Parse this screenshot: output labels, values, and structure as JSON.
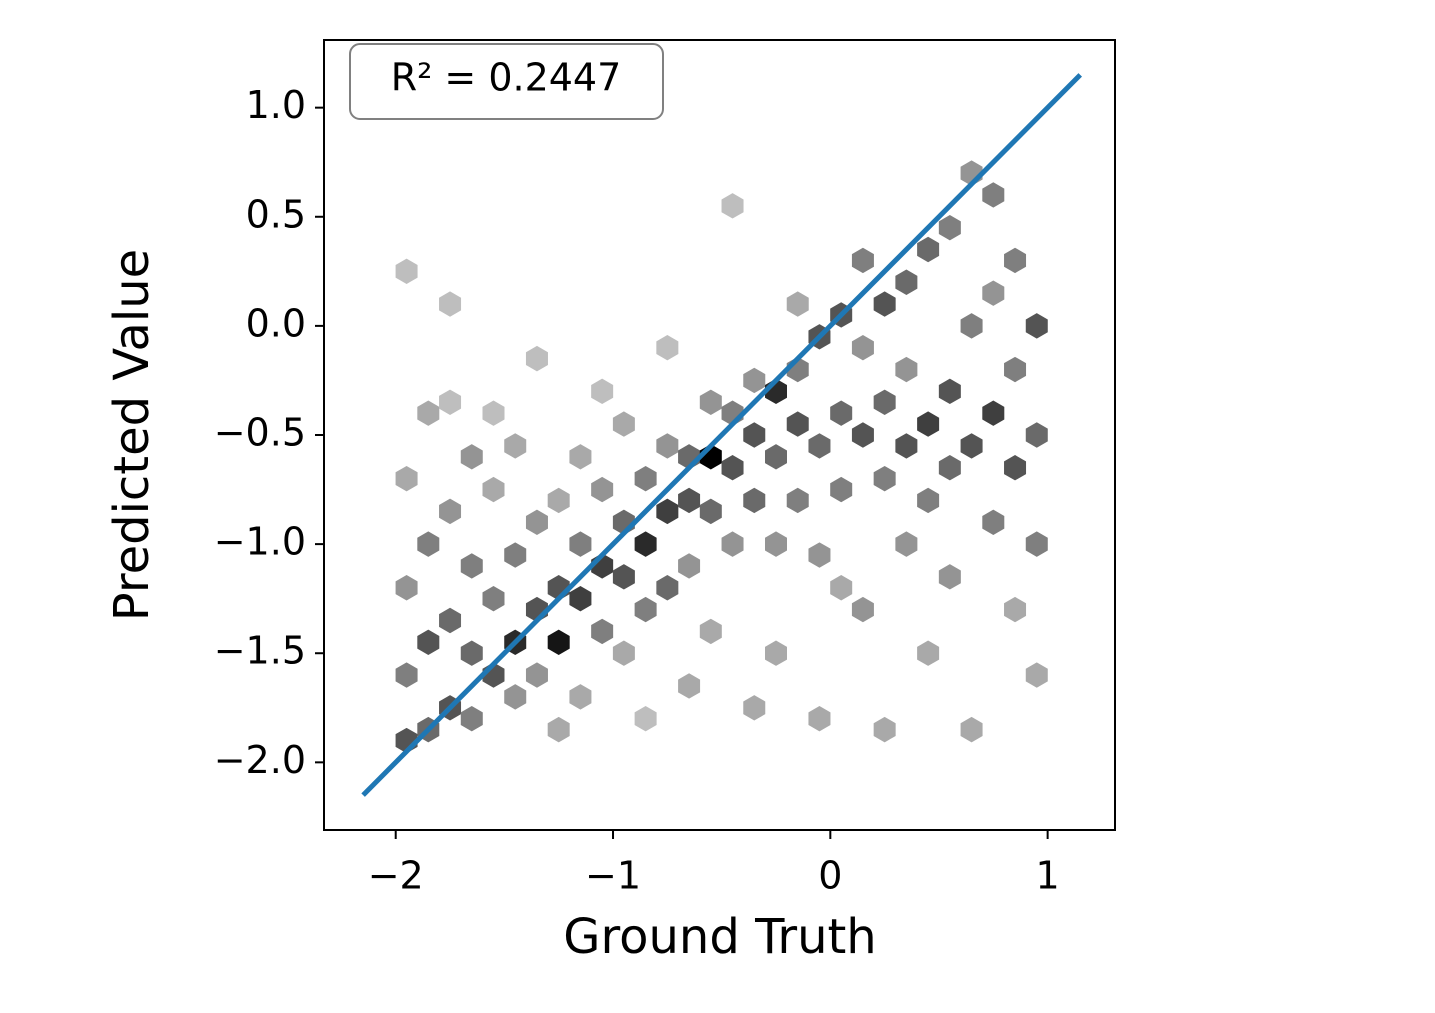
{
  "chart_data": {
    "type": "hexbin",
    "x_label": "Ground Truth",
    "y_label": "Predicted Value",
    "annotation": "R² = 0.2447",
    "xlim": [
      -2.33,
      1.31
    ],
    "ylim": [
      -2.31,
      1.31
    ],
    "xticks": [
      {
        "value": -2,
        "label": "−2"
      },
      {
        "value": -1,
        "label": "−1"
      },
      0,
      1
    ],
    "yticks": [
      {
        "value": -2.0,
        "label": "−2.0"
      },
      {
        "value": -1.5,
        "label": "−1.5"
      },
      {
        "value": -1.0,
        "label": "−1.0"
      },
      {
        "value": -0.5,
        "label": "−0.5"
      },
      {
        "value": 0.0,
        "label": "0.0"
      },
      {
        "value": 0.5,
        "label": "0.5"
      },
      {
        "value": 1.0,
        "label": "1.0"
      }
    ],
    "x": [
      -1.95,
      -1.95,
      -1.95,
      -1.95,
      -1.95,
      -1.85,
      -1.85,
      -1.85,
      -1.85,
      -1.75,
      -1.75,
      -1.75,
      -1.75,
      -1.75,
      -1.65,
      -1.65,
      -1.65,
      -1.65,
      -1.55,
      -1.55,
      -1.55,
      -1.55,
      -1.45,
      -1.45,
      -1.45,
      -1.45,
      -1.35,
      -1.35,
      -1.35,
      -1.35,
      -1.25,
      -1.25,
      -1.25,
      -1.25,
      -1.15,
      -1.15,
      -1.15,
      -1.15,
      -1.05,
      -1.05,
      -1.05,
      -1.05,
      -0.95,
      -0.95,
      -0.95,
      -0.95,
      -0.85,
      -0.85,
      -0.85,
      -0.85,
      -0.75,
      -0.75,
      -0.75,
      -0.75,
      -0.65,
      -0.65,
      -0.65,
      -0.65,
      -0.55,
      -0.55,
      -0.55,
      -0.55,
      -0.45,
      -0.45,
      -0.45,
      -0.45,
      -0.35,
      -0.35,
      -0.35,
      -0.35,
      -0.25,
      -0.25,
      -0.25,
      -0.25,
      -0.15,
      -0.15,
      -0.15,
      -0.15,
      -0.05,
      -0.05,
      -0.05,
      -0.05,
      0.05,
      0.05,
      0.05,
      0.05,
      0.15,
      0.15,
      0.15,
      0.15,
      0.25,
      0.25,
      0.25,
      0.25,
      0.35,
      0.35,
      0.35,
      0.35,
      0.45,
      0.45,
      0.45,
      0.45,
      0.55,
      0.55,
      0.55,
      0.55,
      0.65,
      0.65,
      0.65,
      0.65,
      0.75,
      0.75,
      0.75,
      0.75,
      0.85,
      0.85,
      0.85,
      0.85,
      0.95,
      0.95,
      0.95,
      0.95
    ],
    "y": [
      -1.9,
      -1.6,
      -1.2,
      -0.7,
      0.25,
      -1.85,
      -1.45,
      -1.0,
      -0.4,
      -1.75,
      -1.35,
      -0.85,
      -0.35,
      0.1,
      -1.8,
      -1.5,
      -1.1,
      -0.6,
      -1.6,
      -1.25,
      -0.75,
      -0.4,
      -1.45,
      -1.7,
      -1.05,
      -0.55,
      -1.3,
      -1.6,
      -0.9,
      -0.15,
      -1.45,
      -1.2,
      -0.8,
      -1.85,
      -1.25,
      -1.0,
      -0.6,
      -1.7,
      -1.1,
      -1.4,
      -0.75,
      -0.3,
      -1.15,
      -0.9,
      -1.5,
      -0.45,
      -1.0,
      -0.7,
      -1.3,
      -1.8,
      -0.85,
      -1.2,
      -0.55,
      -0.1,
      -0.8,
      -0.6,
      -1.1,
      -1.65,
      -0.6,
      -0.85,
      -0.35,
      -1.4,
      -0.65,
      -0.4,
      -1.0,
      0.55,
      -0.5,
      -0.8,
      -0.25,
      -1.75,
      -0.3,
      -0.6,
      -1.0,
      -1.5,
      -0.45,
      -0.2,
      -0.8,
      0.1,
      -0.05,
      -0.55,
      -1.05,
      -1.8,
      0.05,
      -0.4,
      -0.75,
      -1.2,
      0.3,
      -0.5,
      -1.3,
      -0.1,
      0.1,
      -0.35,
      -0.7,
      -1.85,
      0.2,
      -0.55,
      -1.0,
      -0.2,
      0.35,
      -0.45,
      -0.8,
      -1.5,
      0.45,
      -0.3,
      -0.65,
      -1.15,
      0.7,
      -0.55,
      0.0,
      -1.85,
      0.6,
      -0.4,
      -0.9,
      0.15,
      0.3,
      -0.65,
      -0.2,
      -1.3,
      0.0,
      -0.5,
      -1.0,
      -1.6
    ],
    "values": [
      6,
      4,
      3,
      2,
      1,
      5,
      6,
      4,
      2,
      6,
      5,
      3,
      1,
      1,
      4,
      5,
      4,
      3,
      6,
      4,
      2,
      1,
      8,
      3,
      4,
      2,
      6,
      3,
      3,
      1,
      9,
      6,
      2,
      2,
      7,
      4,
      2,
      2,
      7,
      4,
      3,
      1,
      6,
      5,
      2,
      2,
      8,
      4,
      4,
      1,
      7,
      5,
      3,
      1,
      6,
      5,
      3,
      2,
      10,
      5,
      3,
      2,
      6,
      4,
      3,
      1,
      6,
      5,
      3,
      2,
      8,
      5,
      3,
      2,
      6,
      4,
      4,
      2,
      6,
      5,
      3,
      2,
      6,
      5,
      4,
      2,
      4,
      6,
      3,
      3,
      6,
      5,
      4,
      2,
      5,
      6,
      3,
      3,
      5,
      7,
      4,
      2,
      4,
      6,
      5,
      3,
      3,
      6,
      4,
      2,
      4,
      7,
      4,
      3,
      4,
      6,
      4,
      2,
      6,
      5,
      4,
      2
    ],
    "fit_line": {
      "x": [
        -2.15,
        1.15
      ],
      "y": [
        -2.15,
        1.15
      ],
      "color": "#1f77b4"
    }
  }
}
